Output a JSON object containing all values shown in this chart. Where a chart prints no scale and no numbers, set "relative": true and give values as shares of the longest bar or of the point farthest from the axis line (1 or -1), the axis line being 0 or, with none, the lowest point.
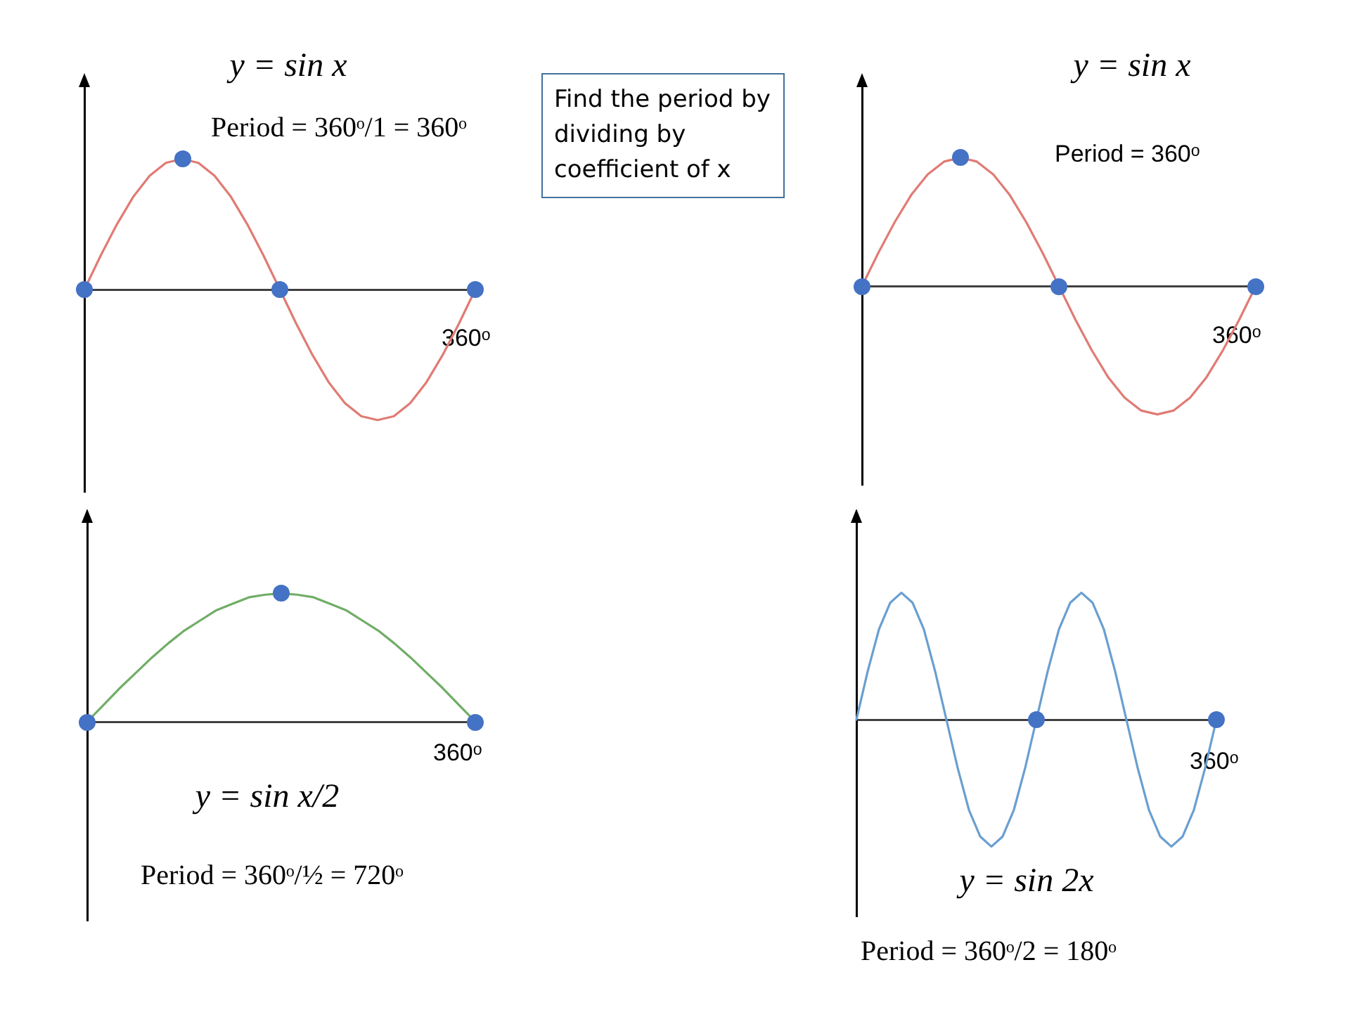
{
  "chart_data": [
    {
      "type": "line",
      "title": "y = sin x",
      "annotations": [
        "Period = 360ᵒ/1 = 360ᵒ",
        "Find the period by dividing by coefficient of x",
        "360ᵒ"
      ],
      "relative": true,
      "grid": false,
      "legend": false,
      "tick_labels": false,
      "categories": [
        null,
        null,
        null,
        null,
        null,
        null,
        null,
        null,
        null,
        null,
        null,
        null,
        null,
        null,
        null,
        null,
        null,
        null,
        null,
        null,
        null,
        null,
        null,
        null,
        null
      ],
      "series": [
        {
          "color": "#e07b74",
          "values": [
            0,
            0.26,
            0.5,
            0.71,
            0.87,
            0.97,
            1,
            0.97,
            0.87,
            0.71,
            0.5,
            0.26,
            0,
            -0.26,
            -0.5,
            -0.71,
            -0.87,
            -0.97,
            -1,
            -0.97,
            -0.87,
            -0.71,
            -0.5,
            -0.26,
            0
          ]
        }
      ]
    },
    {
      "type": "line",
      "title": "y = sin x",
      "annotations": [
        "Period = 360ᵒ",
        "360ᵒ"
      ],
      "relative": true,
      "grid": false,
      "legend": false,
      "tick_labels": false,
      "categories": [
        null,
        null,
        null,
        null,
        null,
        null,
        null,
        null,
        null,
        null,
        null,
        null,
        null,
        null,
        null,
        null,
        null,
        null,
        null,
        null,
        null,
        null,
        null,
        null,
        null
      ],
      "series": [
        {
          "color": "#e07b74",
          "values": [
            0,
            0.26,
            0.5,
            0.71,
            0.87,
            0.97,
            1,
            0.97,
            0.87,
            0.71,
            0.5,
            0.26,
            0,
            -0.26,
            -0.5,
            -0.71,
            -0.87,
            -0.97,
            -1,
            -0.97,
            -0.87,
            -0.71,
            -0.5,
            -0.26,
            0
          ]
        }
      ]
    },
    {
      "type": "line",
      "title": "y = sin x/2",
      "annotations": [
        "Period = 360ᵒ/½ = 720ᵒ",
        "360ᵒ"
      ],
      "relative": true,
      "grid": false,
      "legend": false,
      "tick_labels": false,
      "categories": [
        null,
        null,
        null,
        null,
        null,
        null,
        null,
        null,
        null,
        null,
        null,
        null,
        null,
        null,
        null,
        null,
        null,
        null,
        null,
        null,
        null,
        null,
        null,
        null,
        null
      ],
      "series": [
        {
          "color": "#70ad66",
          "values": [
            0,
            0.13,
            0.26,
            0.38,
            0.5,
            0.61,
            0.71,
            0.79,
            0.87,
            0.92,
            0.97,
            0.99,
            1,
            0.99,
            0.97,
            0.92,
            0.87,
            0.79,
            0.71,
            0.61,
            0.5,
            0.38,
            0.26,
            0.13,
            0
          ]
        }
      ]
    },
    {
      "type": "line",
      "title": "y = sin 2x",
      "annotations": [
        "Period = 360ᵒ/2 = 180ᵒ",
        "360ᵒ"
      ],
      "relative": true,
      "grid": false,
      "legend": false,
      "tick_labels": false,
      "categories": [
        null,
        null,
        null,
        null,
        null,
        null,
        null,
        null,
        null,
        null,
        null,
        null,
        null,
        null,
        null,
        null,
        null,
        null,
        null,
        null,
        null,
        null,
        null,
        null,
        null,
        null,
        null,
        null,
        null,
        null,
        null,
        null,
        null
      ],
      "series": [
        {
          "color": "#6a9fd0",
          "values": [
            0,
            0.38,
            0.71,
            0.92,
            1,
            0.92,
            0.71,
            0.38,
            0,
            -0.38,
            -0.71,
            -0.92,
            -1,
            -0.92,
            -0.71,
            -0.38,
            0,
            0.38,
            0.71,
            0.92,
            1,
            0.92,
            0.71,
            0.38,
            0,
            -0.38,
            -0.71,
            -0.92,
            -1,
            -0.92,
            -0.71,
            -0.38,
            0
          ]
        }
      ]
    }
  ]
}
